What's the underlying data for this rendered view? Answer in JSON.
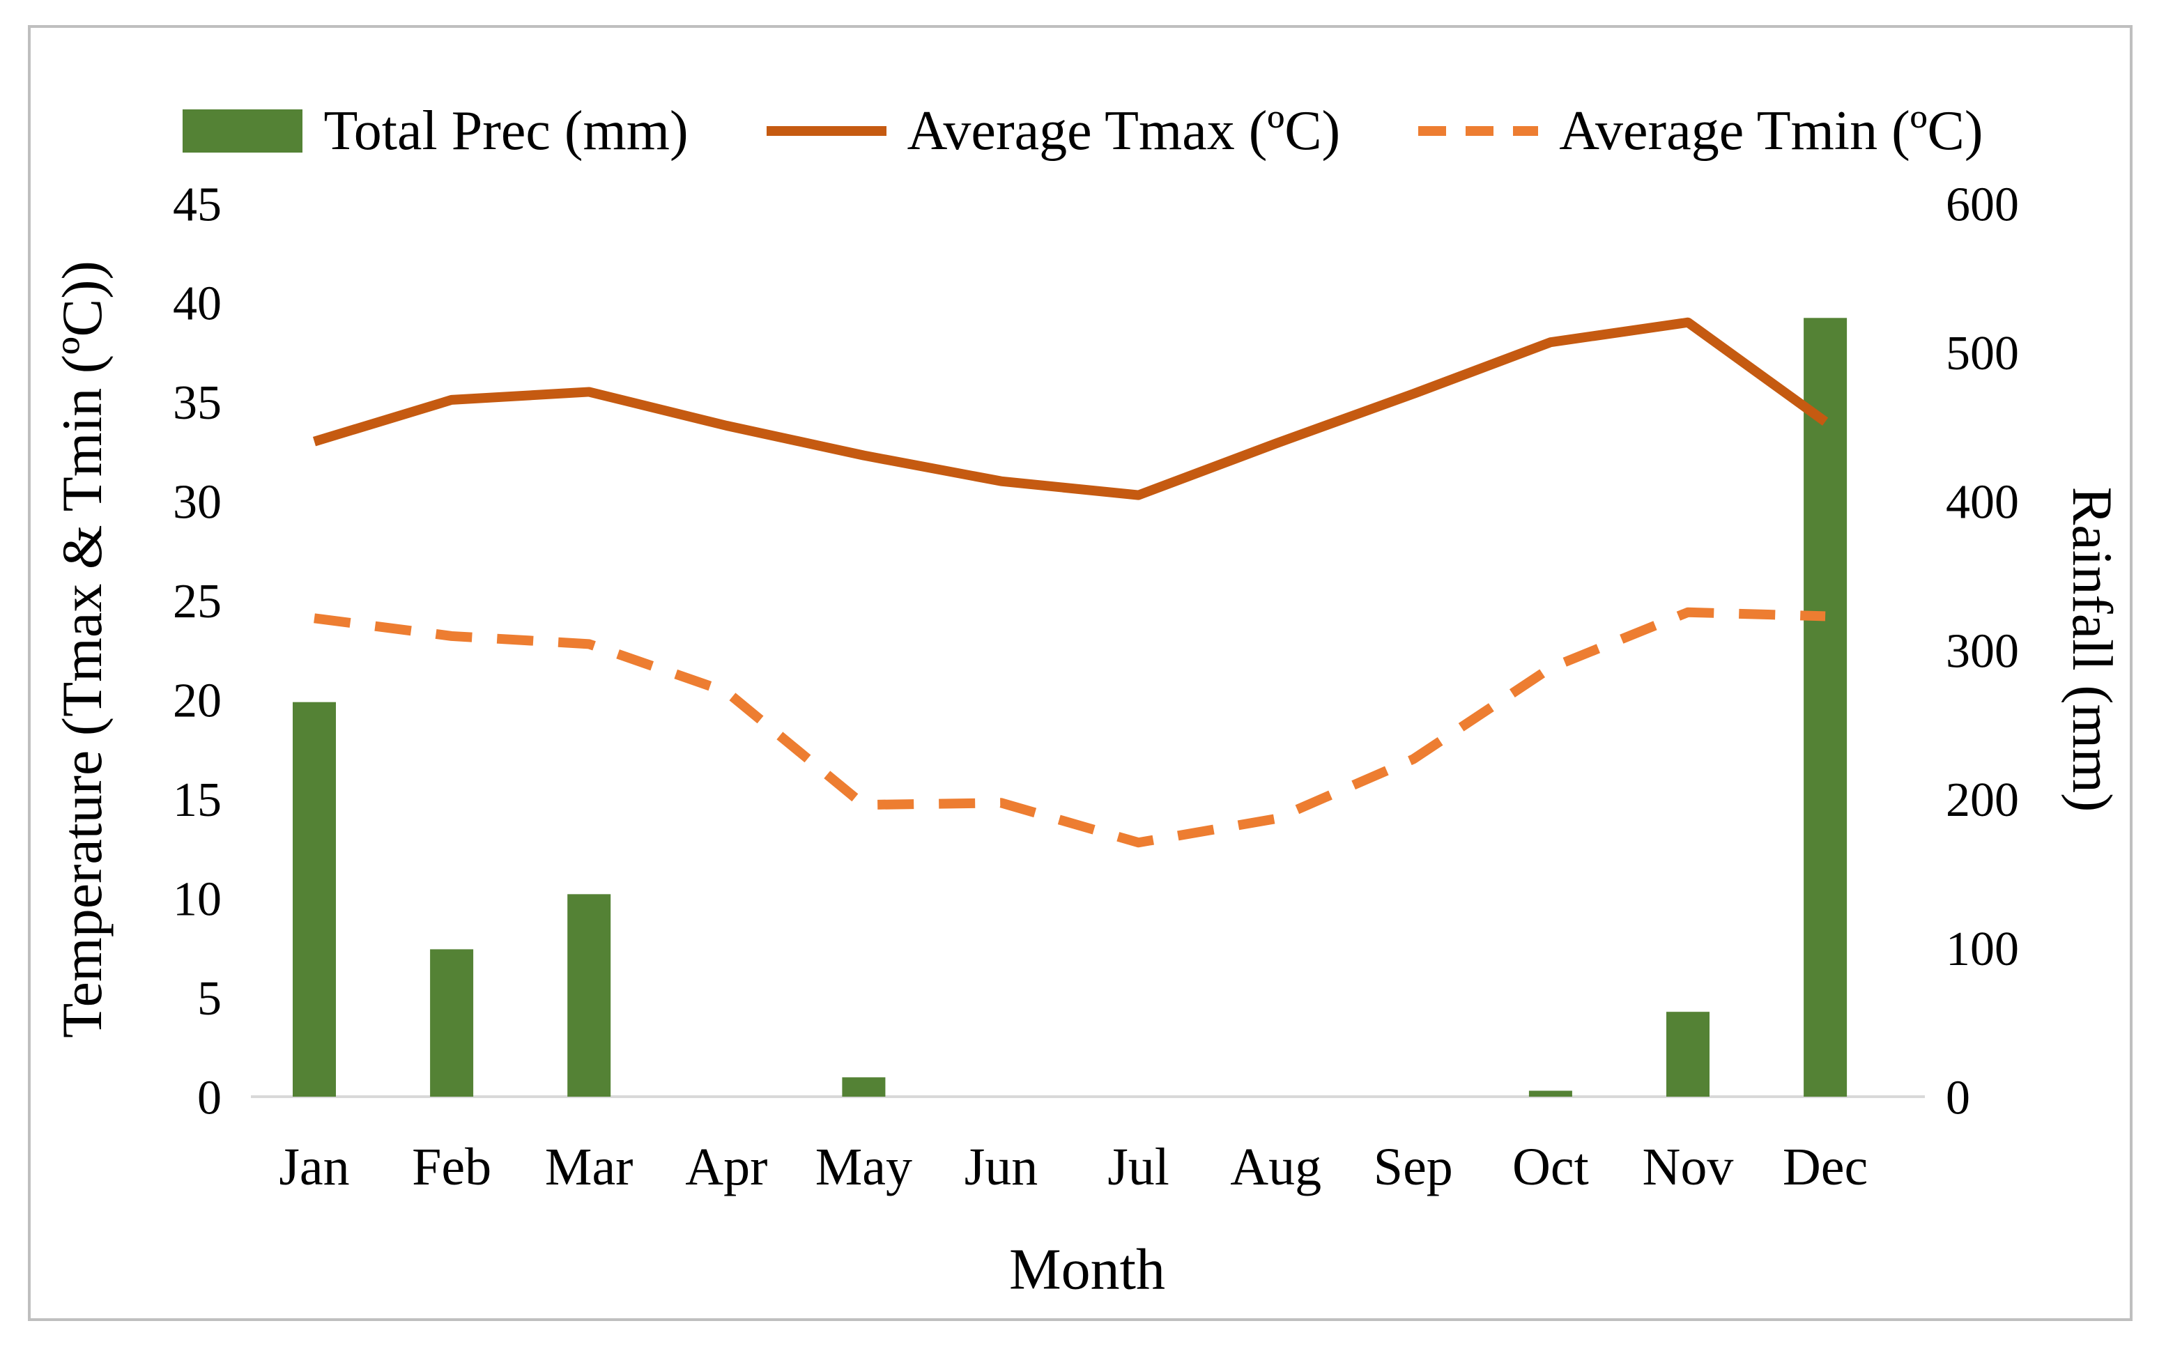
{
  "legend": {
    "items": [
      {
        "id": "prec",
        "label": "Total Prec (mm)",
        "swatch": "bar"
      },
      {
        "id": "tmax",
        "label": "Average Tmax (ºC)",
        "swatch": "line-solid"
      },
      {
        "id": "tmin",
        "label": "Average Tmin (ºC)",
        "swatch": "line-dashed"
      }
    ]
  },
  "chart_data": {
    "type": "bar+line combo",
    "title": "",
    "xlabel": "Month",
    "ylabel_left": "Temperature (Tmax & Tmin (ºC))",
    "ylabel_right": "Rainfall (mm)",
    "categories": [
      "Jan",
      "Feb",
      "Mar",
      "Apr",
      "May",
      "Jun",
      "Jul",
      "Aug",
      "Sep",
      "Oct",
      "Nov",
      "Dec"
    ],
    "series": [
      {
        "id": "prec",
        "name": "Total Prec (mm)",
        "type": "bar",
        "axis": "right",
        "color": "#548235",
        "values": [
          265,
          99,
          136,
          0,
          13,
          0,
          0,
          0,
          0,
          4,
          57,
          523
        ]
      },
      {
        "id": "tmax",
        "name": "Average Tmax (ºC)",
        "type": "line",
        "style": "solid",
        "axis": "left",
        "color": "#c55a11",
        "values": [
          33.0,
          35.1,
          35.5,
          33.8,
          32.3,
          31.0,
          30.3,
          32.9,
          35.4,
          38.0,
          39.0,
          34.0
        ]
      },
      {
        "id": "tmin",
        "name": "Average Tmin (ºC)",
        "type": "line",
        "style": "dashed",
        "axis": "left",
        "color": "#ed7d31",
        "values": [
          24.1,
          23.2,
          22.8,
          20.4,
          14.7,
          14.8,
          12.8,
          14.0,
          17.0,
          21.6,
          24.4,
          24.2
        ]
      }
    ],
    "axis_left": {
      "min": 0,
      "max": 45,
      "step": 5,
      "ticks": [
        0,
        5,
        10,
        15,
        20,
        25,
        30,
        35,
        40,
        45
      ]
    },
    "axis_right": {
      "min": 0,
      "max": 600,
      "step": 100,
      "ticks": [
        0,
        100,
        200,
        300,
        400,
        500,
        600
      ]
    },
    "grid": false,
    "legend_position": "top"
  },
  "colors": {
    "bar_green": "#548235",
    "tmax_line": "#c55a11",
    "tmin_line": "#ed7d31",
    "axis_line": "#d9d9d9",
    "frame_border": "#bfbfbf",
    "text": "#000000"
  }
}
